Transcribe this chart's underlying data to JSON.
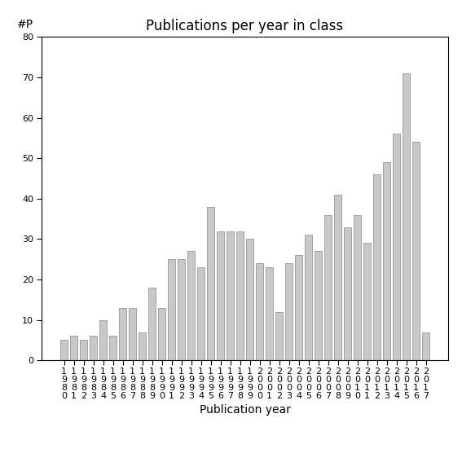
{
  "years": [
    "1980",
    "1981",
    "1982",
    "1983",
    "1984",
    "1985",
    "1986",
    "1987",
    "1988",
    "1989",
    "1990",
    "1991",
    "1992",
    "1993",
    "1994",
    "1995",
    "1996",
    "1997",
    "1998",
    "1999",
    "2000",
    "2001",
    "2002",
    "2003",
    "2004",
    "2005",
    "2006",
    "2007",
    "2008",
    "2009",
    "2010",
    "2011",
    "2012",
    "2013",
    "2014",
    "2015",
    "2016",
    "2017"
  ],
  "values": [
    5,
    6,
    5,
    6,
    10,
    6,
    13,
    13,
    7,
    18,
    13,
    25,
    25,
    27,
    23,
    38,
    32,
    32,
    32,
    30,
    24,
    23,
    12,
    24,
    26,
    31,
    27,
    36,
    41,
    33,
    36,
    29,
    46,
    49,
    56,
    71,
    54,
    7
  ],
  "bar_color": "#c8c8c8",
  "bar_edgecolor": "#888888",
  "title": "Publications per year in class",
  "xlabel": "Publication year",
  "ylabel": "#P",
  "ylim": [
    0,
    80
  ],
  "yticks": [
    0,
    10,
    20,
    30,
    40,
    50,
    60,
    70,
    80
  ],
  "background_color": "#ffffff",
  "title_fontsize": 12,
  "label_fontsize": 10,
  "tick_fontsize": 8
}
